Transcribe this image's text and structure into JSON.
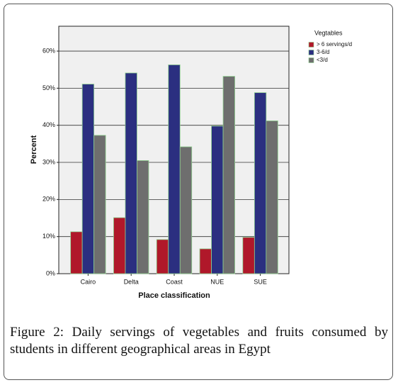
{
  "chart_data": {
    "type": "bar",
    "xlabel": "Place classification",
    "ylabel": "Percent",
    "categories": [
      "Cairo",
      "Delta",
      "Coast",
      "NUE",
      "SUE"
    ],
    "series": [
      {
        "name": "> 6 servings/d",
        "color": "#b0182a",
        "values": [
          11.3,
          15.1,
          9.2,
          6.7,
          9.8
        ]
      },
      {
        "name": "3-6/d",
        "color": "#2b2f80",
        "values": [
          51.1,
          54.1,
          56.3,
          39.8,
          48.8
        ]
      },
      {
        "name": "<3/d",
        "color": "#6e6e6e",
        "values": [
          37.3,
          30.5,
          34.2,
          53.2,
          41.2
        ]
      }
    ],
    "legend_title": "Vegtables",
    "ylim": [
      0,
      66.7
    ],
    "yticks": [
      {
        "value": 0,
        "label": "0%"
      },
      {
        "value": 10,
        "label": "10%"
      },
      {
        "value": 20,
        "label": "20%"
      },
      {
        "value": 30,
        "label": "30%"
      },
      {
        "value": 40,
        "label": "40%"
      },
      {
        "value": 50,
        "label": "50%"
      },
      {
        "value": 60,
        "label": "60%"
      }
    ],
    "grid": true
  },
  "caption": "Figure 2: Daily servings of vegetables and fruits consumed by students in different geographical areas in Egypt"
}
